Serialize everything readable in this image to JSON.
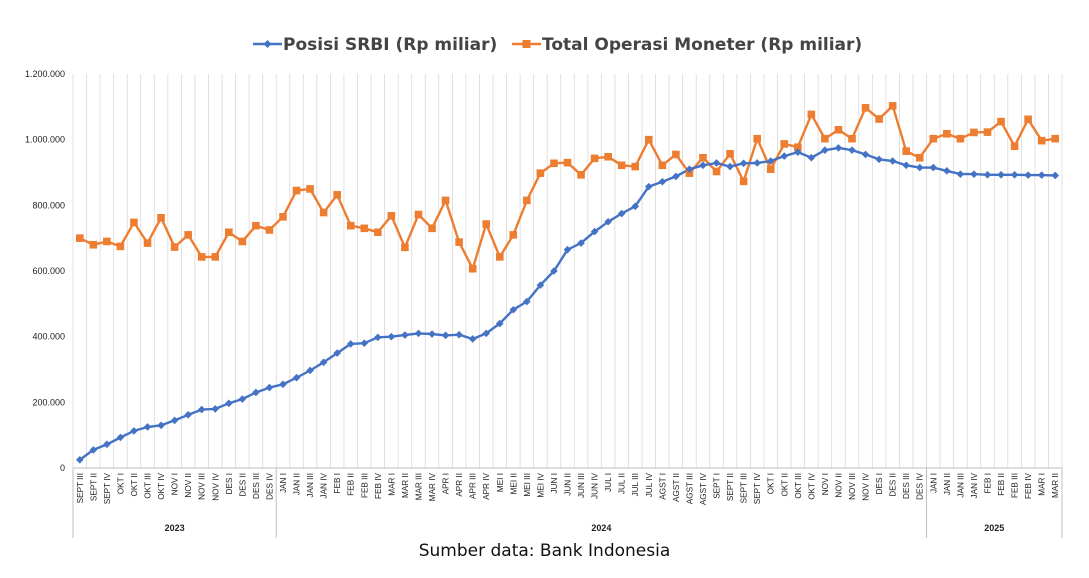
{
  "caption": "Sumber data: Bank Indonesia",
  "chart_data": {
    "type": "line",
    "title": "",
    "xlabel": "",
    "ylabel": "",
    "ylim": [
      0,
      1200000
    ],
    "yticks": [
      0,
      200000,
      400000,
      600000,
      800000,
      1000000,
      1200000
    ],
    "ytick_labels": [
      "0",
      "200.000",
      "400.000",
      "600.000",
      "800.000",
      "1.000.000",
      "1.200.000"
    ],
    "grid": "vertical",
    "legend_position": "top",
    "colors": {
      "srbi": "#4472C4",
      "total": "#ED7D31"
    },
    "categories": [
      "SEPT III",
      "SEPT II",
      "SEPT IV",
      "OKT I",
      "OKT II",
      "OKT III",
      "OKT IV",
      "NOV I",
      "NOV II",
      "NOV III",
      "NOV IV",
      "DES I",
      "DES II",
      "DES III",
      "DES IV",
      "JAN I",
      "JAN II",
      "JAN III",
      "JAN IV",
      "FEB I",
      "FEB II",
      "FEB III",
      "FEB IV",
      "MAR I",
      "MAR II",
      "MAR III",
      "MAR IV",
      "APR I",
      "APR II",
      "APR III",
      "APR IV",
      "MEI I",
      "MEI II",
      "MEI III",
      "MEI IV",
      "JUN I",
      "JUN II",
      "JUN III",
      "JUN IV",
      "JUL I",
      "JUL II",
      "JUL III",
      "JUL IV",
      "AGST I",
      "AGST II",
      "AGST III",
      "AGST IV",
      "SEPT I",
      "SEPT II",
      "SEPT III",
      "SEPT IV",
      "OKT I",
      "OKT II",
      "OKT III",
      "OKT IV",
      "NOV I",
      "NOV II",
      "NOV III",
      "NOV IV",
      "DES I",
      "DES II",
      "DES III",
      "DES IV",
      "JAN I",
      "JAN II",
      "JAN III",
      "JAN IV",
      "FEB I",
      "FEB II",
      "FEB III",
      "FEB IV",
      "MAR I",
      "MAR II"
    ],
    "visible_tick_labels": [
      "SEPT III",
      "SEPT II",
      "SEPT IV",
      "OKT I",
      "OKT II",
      "OKT III",
      "OKT IV",
      "NOV I",
      "NOV II",
      "NOV III",
      "NOV IV",
      "DES I",
      "DES II",
      "DES III",
      "DES IV",
      "JAN I",
      "JAN II",
      "JAN III",
      "JAN IV",
      "FEB I",
      "FEB II",
      "FEB III",
      "FEB IV",
      "MAR I",
      "MAR II",
      "MAR III",
      "MAR IV",
      "APR I",
      "APR II",
      "APR III",
      "APR IV",
      "MEI I",
      "MEI II",
      "MEI III",
      "MEI IV",
      "JUN I",
      "JUN II",
      "JUN III",
      "JUN IV",
      "JUL I",
      "JUL II",
      "JUL III",
      "JUL IV",
      "AGST I",
      "AGST II",
      "AGST III",
      "AGST IV",
      "SEPT I",
      "SEPT II",
      "SEPT III",
      "SEPT IV",
      "OKT I",
      "OKT II",
      "OKT III",
      "OKT IV",
      "NOV I",
      "NOV II",
      "NOV III",
      "NOV IV",
      "DES I",
      "DES II",
      "DES III",
      "DES IV",
      "JAN I",
      "JAN II",
      "JAN III",
      "JAN IV",
      "FEB I",
      "FEB II",
      "FEB III",
      "FEB IV",
      "MAR I",
      "MAR II"
    ],
    "year_groups": [
      {
        "label": "2023",
        "start": 0,
        "count": 15
      },
      {
        "label": "2024",
        "start": 15,
        "count": 48
      },
      {
        "label": "2025",
        "start": 63,
        "count": 10
      }
    ],
    "series": [
      {
        "name": "Posisi SRBI (Rp miliar)",
        "key": "srbi",
        "values": [
          25000,
          55000,
          72000,
          93000,
          113000,
          125000,
          130000,
          145000,
          162000,
          178000,
          180000,
          197000,
          210000,
          230000,
          245000,
          255000,
          275000,
          297000,
          322000,
          350000,
          378000,
          380000,
          398000,
          400000,
          405000,
          410000,
          408000,
          404000,
          406000,
          393000,
          410000,
          440000,
          482000,
          507000,
          557000,
          600000,
          665000,
          685000,
          720000,
          750000,
          775000,
          797000,
          857000,
          872000,
          888000,
          910000,
          922000,
          929000,
          918000,
          928000,
          929000,
          935000,
          950000,
          962000,
          945000,
          968000,
          975000,
          968000,
          955000,
          940000,
          935000,
          922000,
          915000,
          915000,
          905000,
          895000,
          895000,
          893000,
          893000,
          893000,
          892000,
          892000,
          891000
        ]
      },
      {
        "name": "Total Operasi Moneter (Rp miliar)",
        "key": "total",
        "values": [
          700000,
          680000,
          690000,
          675000,
          748000,
          685000,
          762000,
          673000,
          710000,
          643000,
          643000,
          718000,
          690000,
          738000,
          725000,
          765000,
          845000,
          850000,
          778000,
          832000,
          738000,
          730000,
          718000,
          768000,
          672000,
          772000,
          730000,
          815000,
          688000,
          607000,
          743000,
          643000,
          710000,
          815000,
          898000,
          928000,
          930000,
          893000,
          943000,
          948000,
          922000,
          918000,
          1000000,
          922000,
          955000,
          898000,
          945000,
          903000,
          957000,
          873000,
          1003000,
          910000,
          987000,
          977000,
          1077000,
          1003000,
          1030000,
          1003000,
          1097000,
          1063000,
          1103000,
          965000,
          945000,
          1003000,
          1018000,
          1003000,
          1022000,
          1023000,
          1055000,
          980000,
          1062000,
          997000,
          1003000
        ]
      }
    ]
  }
}
